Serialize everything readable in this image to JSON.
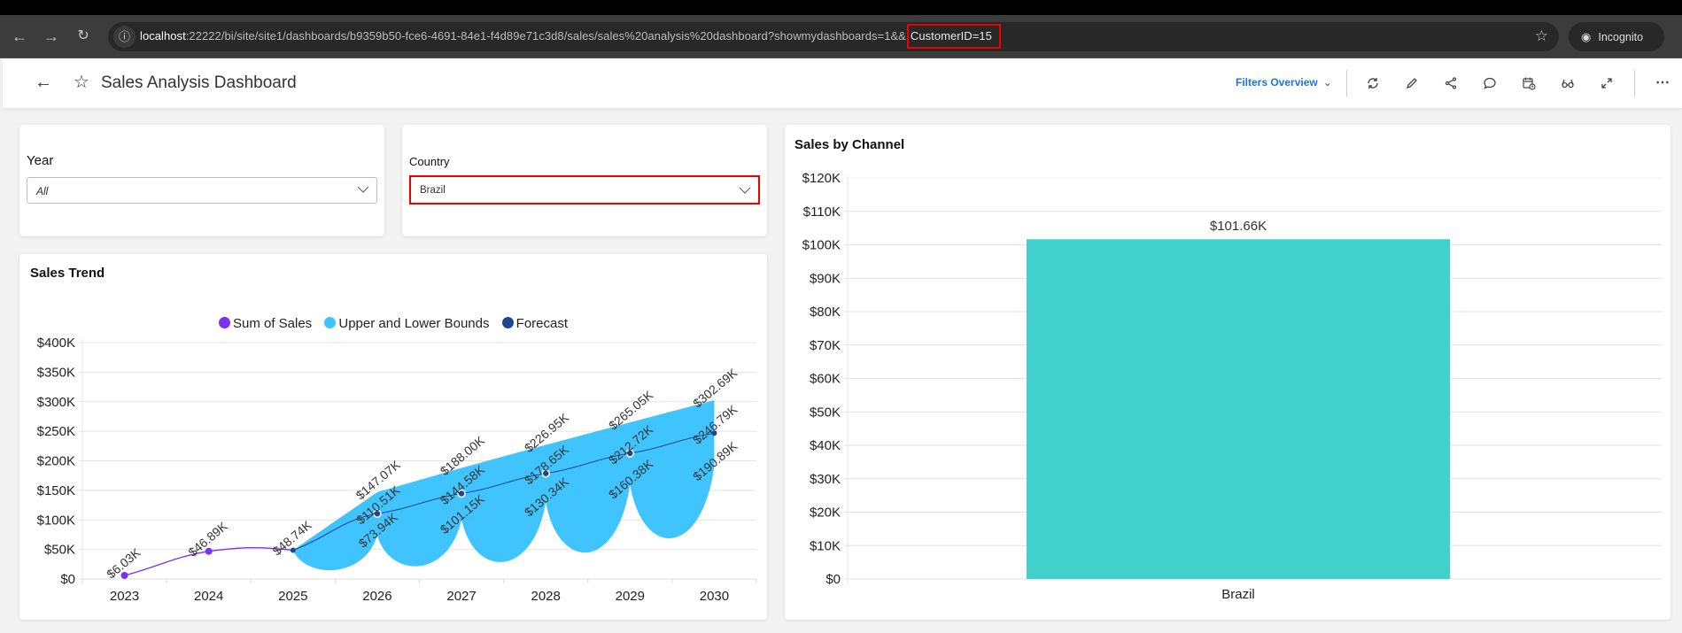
{
  "browser": {
    "url_host": "localhost",
    "url_rest": ":22222/bi/site/site1/dashboards/b9359b50-fce6-4691-84e1-f4d89e71c3d8/sales/sales%20analysis%20dashboard?showmydashboards=1&&",
    "url_highlight": "CustomerID=15",
    "incognito_label": "Incognito"
  },
  "header": {
    "title": "Sales Analysis Dashboard",
    "filters_overview_label": "Filters Overview",
    "icons": [
      "refresh-icon",
      "edit-icon",
      "share-icon",
      "comment-icon",
      "schedule-icon",
      "view-icon",
      "fullscreen-icon",
      "more-icon"
    ]
  },
  "filters": {
    "year": {
      "label": "Year",
      "value": "All"
    },
    "country": {
      "label": "Country",
      "value": "Brazil"
    }
  },
  "sales_trend": {
    "title": "Sales Trend",
    "legend": [
      {
        "label": "Sum of Sales",
        "color": "#7b2ff7"
      },
      {
        "label": "Upper and Lower Bounds",
        "color": "#40c4ff"
      },
      {
        "label": "Forecast",
        "color": "#1f4690"
      }
    ]
  },
  "sales_by_channel": {
    "title": "Sales by Channel",
    "bar_color": "#40d1cd"
  },
  "chart_data": [
    {
      "type": "line",
      "title": "Sales Trend",
      "xlabel": "",
      "ylabel": "",
      "categories": [
        "2023",
        "2024",
        "2025",
        "2026",
        "2027",
        "2028",
        "2029",
        "2030"
      ],
      "yticks": [
        "$0",
        "$50K",
        "$100K",
        "$150K",
        "$200K",
        "$250K",
        "$300K",
        "$350K",
        "$400K"
      ],
      "ylim": [
        0,
        400
      ],
      "grid": true,
      "legend_position": "top",
      "series": [
        {
          "name": "Sum of Sales",
          "values": [
            6.03,
            46.89,
            48.74,
            null,
            null,
            null,
            null,
            null
          ],
          "labels": [
            "$6.03K",
            "$46.89K",
            "$48.74K",
            null,
            null,
            null,
            null,
            null
          ]
        },
        {
          "name": "Forecast",
          "values": [
            null,
            null,
            48.74,
            110.51,
            144.58,
            178.65,
            212.72,
            246.79
          ],
          "labels": [
            null,
            null,
            null,
            "$110.51K",
            "$144.58K",
            "$178.65K",
            "$212.72K",
            "$246.79K"
          ]
        },
        {
          "name": "Upper Bound",
          "values": [
            null,
            null,
            48.74,
            147.07,
            188.0,
            226.95,
            265.05,
            302.69
          ],
          "labels": [
            null,
            null,
            null,
            "$147.07K",
            "$188.00K",
            "$226.95K",
            "$265.05K",
            "$302.69K"
          ]
        },
        {
          "name": "Lower Bound",
          "values": [
            null,
            null,
            48.74,
            73.94,
            101.15,
            130.34,
            160.38,
            190.89
          ],
          "labels": [
            null,
            null,
            null,
            "$73.94K",
            "$101.15K",
            "$130.34K",
            "$160.38K",
            "$190.89K"
          ]
        }
      ]
    },
    {
      "type": "bar",
      "title": "Sales by Channel",
      "xlabel": "",
      "ylabel": "",
      "categories": [
        "Brazil"
      ],
      "values": [
        101.66
      ],
      "labels": [
        "$101.66K"
      ],
      "yticks": [
        "$0",
        "$10K",
        "$20K",
        "$30K",
        "$40K",
        "$50K",
        "$60K",
        "$70K",
        "$80K",
        "$90K",
        "$100K",
        "$110K",
        "$120K"
      ],
      "ylim": [
        0,
        120
      ],
      "grid": true
    }
  ]
}
